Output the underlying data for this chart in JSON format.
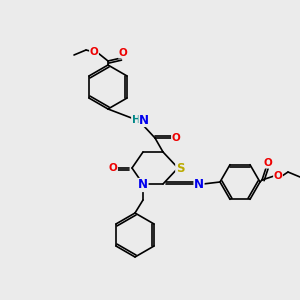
{
  "background_color": "#ebebeb",
  "atom_colors": {
    "C": "#000000",
    "N": "#0000ee",
    "O": "#ee0000",
    "S": "#bbaa00",
    "H": "#008888"
  },
  "bond_color": "#000000",
  "bond_width": 1.2,
  "font_size_atom": 7.5,
  "figsize": [
    3.0,
    3.0
  ],
  "dpi": 100
}
